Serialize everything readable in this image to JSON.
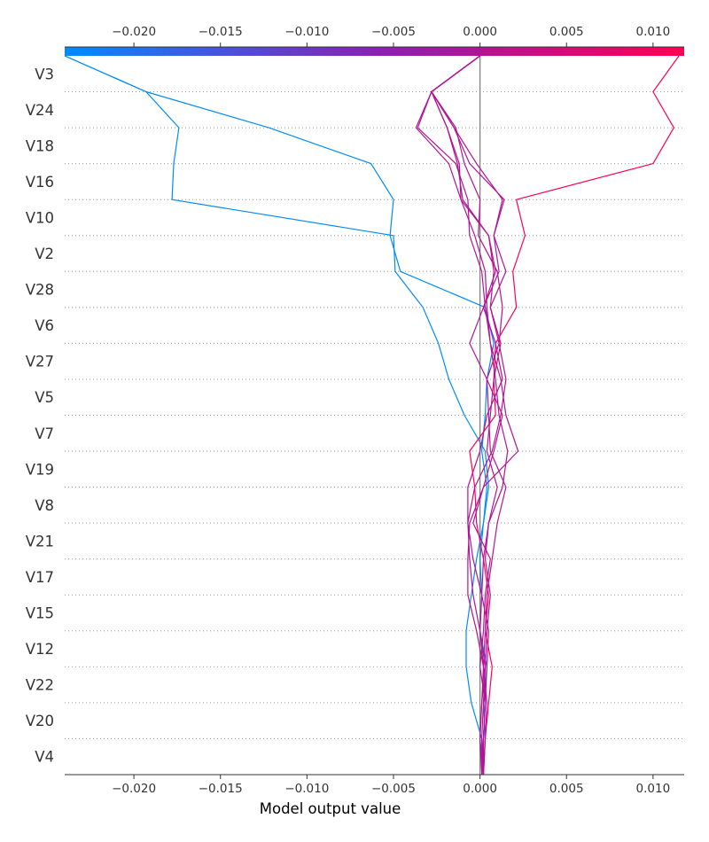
{
  "chart_data": {
    "type": "line",
    "title": "",
    "xlabel": "Model output value",
    "ylabel": "",
    "xlim": [
      -0.024,
      0.0118
    ],
    "base_value": 0.0,
    "grid": "dotted horizontal separators between features",
    "colormap": [
      "#008bfb",
      "#ff0052"
    ],
    "x_ticks": [
      -0.02,
      -0.015,
      -0.01,
      -0.005,
      0.0,
      0.005,
      0.01
    ],
    "x_tick_labels": [
      "−0.020",
      "−0.015",
      "−0.010",
      "−0.005",
      "0.000",
      "0.005",
      "0.010"
    ],
    "features": [
      "V3",
      "V24",
      "V18",
      "V16",
      "V10",
      "V2",
      "V28",
      "V6",
      "V27",
      "V5",
      "V7",
      "V19",
      "V8",
      "V21",
      "V17",
      "V15",
      "V12",
      "V22",
      "V20",
      "V4"
    ],
    "series": [
      {
        "values": [
          -0.024,
          -0.0193,
          -0.0174,
          -0.0177,
          -0.0178,
          -0.005,
          -0.0049,
          -0.0033,
          -0.0024,
          -0.0018,
          -0.0009,
          0.0003,
          0.0005,
          0.0002,
          -0.0002,
          -0.0005,
          -0.0008,
          -0.0008,
          -0.0005,
          0.0001,
          0.0001
        ]
      },
      {
        "values": [
          -0.024,
          -0.0193,
          -0.0122,
          -0.0063,
          -0.005,
          -0.0052,
          -0.0046,
          0.0003,
          0.0008,
          0.0004,
          0.0003,
          0.0001,
          0.0004,
          0.0002,
          0.0,
          0.0001,
          0.0,
          0.0004,
          0.0002,
          0.0003,
          0.0002
        ]
      },
      {
        "values": [
          0.0115,
          0.01,
          0.0112,
          0.01,
          0.0021,
          0.0026,
          0.0019,
          0.0021,
          0.0009,
          0.0008,
          0.0009,
          -0.0006,
          -0.0003,
          -0.0002,
          0.0002,
          0.0005,
          0.0003,
          0.0007,
          0.0005,
          0.0003,
          0.0002
        ]
      },
      {
        "values": [
          0.0,
          -0.0028,
          -0.0036,
          -0.0014,
          -0.0007,
          -0.0006,
          0.0001,
          0.0003,
          0.0006,
          0.0012,
          0.0015,
          0.0022,
          0.0002,
          -0.0004,
          0.0006,
          0.0003,
          0.0002,
          0.0,
          0.0003,
          0.0002,
          0.0002
        ]
      },
      {
        "values": [
          0.0,
          -0.0028,
          -0.0037,
          -0.0018,
          -0.0011,
          -0.0003,
          0.0003,
          0.0004,
          0.0006,
          0.0009,
          0.0011,
          0.0016,
          0.0013,
          0.0005,
          0.0003,
          0.0006,
          0.0004,
          0.0003,
          0.0001,
          0.0,
          0.0001
        ]
      },
      {
        "values": [
          0.0,
          -0.0028,
          -0.0015,
          -0.0006,
          0.0014,
          0.0008,
          0.0015,
          0.0006,
          0.0011,
          0.0004,
          0.0005,
          0.0006,
          0.0015,
          0.001,
          0.0007,
          0.0004,
          0.0003,
          0.0002,
          0.0001,
          0.0,
          0.0002
        ]
      },
      {
        "values": [
          0.0,
          -0.0028,
          -0.0014,
          -0.0009,
          0.0,
          -0.0001,
          0.001,
          0.0013,
          0.0011,
          0.0015,
          0.0012,
          0.0007,
          -0.0003,
          -0.0007,
          -0.0004,
          0.0001,
          0.0005,
          0.0004,
          0.0003,
          0.0002,
          0.0001
        ]
      },
      {
        "values": [
          0.0,
          -0.0028,
          -0.0019,
          -0.0013,
          -0.001,
          0.0005,
          0.0009,
          0.0002,
          -0.0006,
          0.0004,
          0.0013,
          0.0008,
          0.0002,
          -0.0006,
          -0.0007,
          -0.0007,
          -0.0002,
          0.0002,
          0.0004,
          0.0003,
          0.0002
        ]
      },
      {
        "values": [
          0.0,
          -0.0028,
          -0.0015,
          -0.0002,
          0.0013,
          0.0008,
          0.0011,
          0.0002,
          0.0009,
          0.0013,
          0.0004,
          0.0,
          -0.0007,
          -0.0007,
          -0.0006,
          -0.0004,
          0.0,
          0.0002,
          0.0003,
          0.0002,
          0.0001
        ]
      },
      {
        "values": [
          0.0,
          -0.0028,
          -0.0019,
          -0.0012,
          -0.0011,
          0.0005,
          0.0008,
          0.0006,
          0.0012,
          0.0008,
          0.0006,
          0.0004,
          0.001,
          0.0005,
          0.0002,
          0.0001,
          0.0,
          0.0003,
          0.0002,
          0.0001,
          0.0002
        ]
      }
    ]
  }
}
